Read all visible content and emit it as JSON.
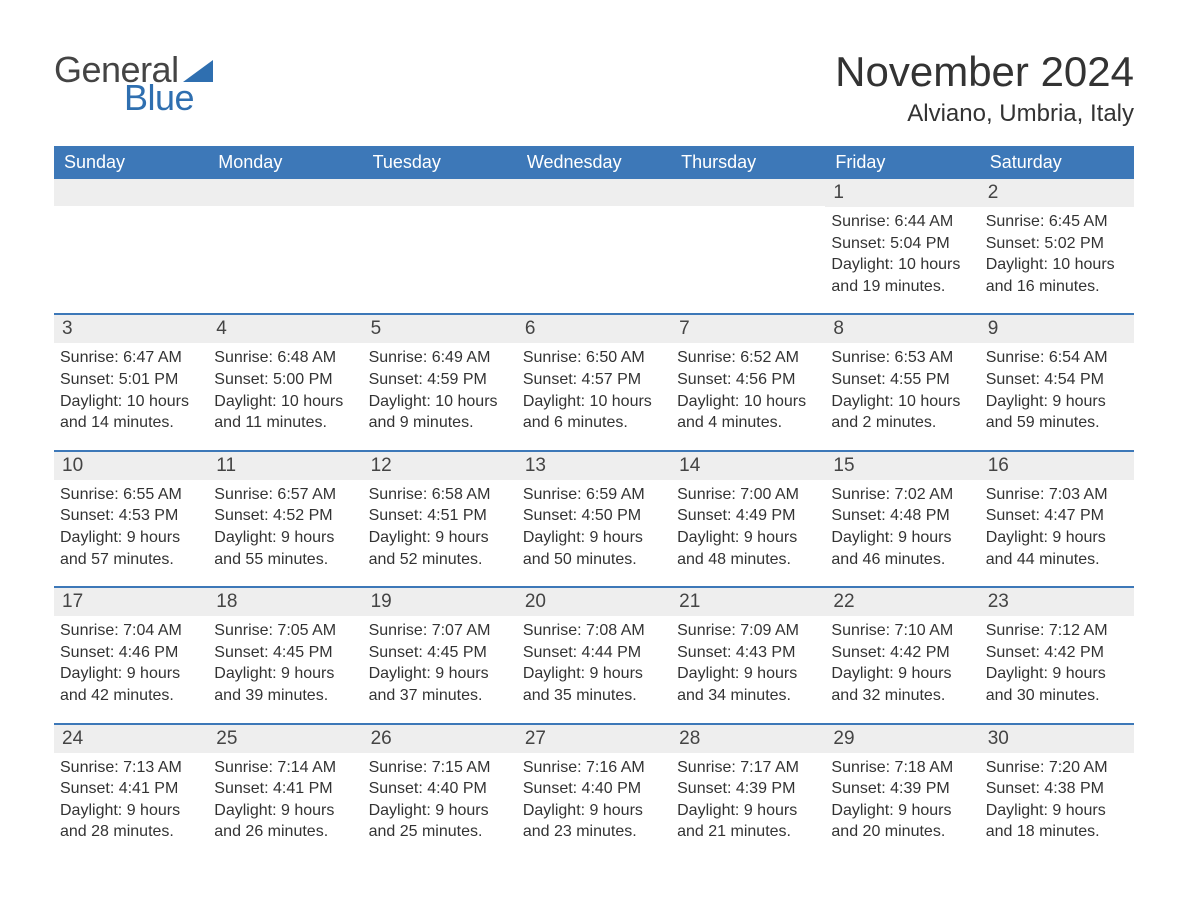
{
  "brand": {
    "word1": "General",
    "word2": "Blue",
    "word1_color": "#444444",
    "word2_color": "#2f6fb0",
    "triangle_color": "#2f6fb0",
    "fontsize": 36
  },
  "title": {
    "month": "November 2024",
    "month_fontsize": 42,
    "month_color": "#333333",
    "location": "Alviano, Umbria, Italy",
    "location_fontsize": 24,
    "location_color": "#333333"
  },
  "style": {
    "header_bg": "#3d78b8",
    "header_text": "#ffffff",
    "week_border": "#3d78b8",
    "daynum_bg": "#eeeeee",
    "daynum_color": "#444444",
    "body_text_color": "#333333",
    "body_fontsize": 16,
    "dow_fontsize": 18,
    "daynum_fontsize": 19,
    "page_bg": "#ffffff"
  },
  "days_of_week": [
    "Sunday",
    "Monday",
    "Tuesday",
    "Wednesday",
    "Thursday",
    "Friday",
    "Saturday"
  ],
  "weeks": [
    [
      {
        "empty": true
      },
      {
        "empty": true
      },
      {
        "empty": true
      },
      {
        "empty": true
      },
      {
        "empty": true
      },
      {
        "n": "1",
        "sunrise": "6:44 AM",
        "sunset": "5:04 PM",
        "dl1": "Daylight: 10 hours",
        "dl2": "and 19 minutes."
      },
      {
        "n": "2",
        "sunrise": "6:45 AM",
        "sunset": "5:02 PM",
        "dl1": "Daylight: 10 hours",
        "dl2": "and 16 minutes."
      }
    ],
    [
      {
        "n": "3",
        "sunrise": "6:47 AM",
        "sunset": "5:01 PM",
        "dl1": "Daylight: 10 hours",
        "dl2": "and 14 minutes."
      },
      {
        "n": "4",
        "sunrise": "6:48 AM",
        "sunset": "5:00 PM",
        "dl1": "Daylight: 10 hours",
        "dl2": "and 11 minutes."
      },
      {
        "n": "5",
        "sunrise": "6:49 AM",
        "sunset": "4:59 PM",
        "dl1": "Daylight: 10 hours",
        "dl2": "and 9 minutes."
      },
      {
        "n": "6",
        "sunrise": "6:50 AM",
        "sunset": "4:57 PM",
        "dl1": "Daylight: 10 hours",
        "dl2": "and 6 minutes."
      },
      {
        "n": "7",
        "sunrise": "6:52 AM",
        "sunset": "4:56 PM",
        "dl1": "Daylight: 10 hours",
        "dl2": "and 4 minutes."
      },
      {
        "n": "8",
        "sunrise": "6:53 AM",
        "sunset": "4:55 PM",
        "dl1": "Daylight: 10 hours",
        "dl2": "and 2 minutes."
      },
      {
        "n": "9",
        "sunrise": "6:54 AM",
        "sunset": "4:54 PM",
        "dl1": "Daylight: 9 hours",
        "dl2": "and 59 minutes."
      }
    ],
    [
      {
        "n": "10",
        "sunrise": "6:55 AM",
        "sunset": "4:53 PM",
        "dl1": "Daylight: 9 hours",
        "dl2": "and 57 minutes."
      },
      {
        "n": "11",
        "sunrise": "6:57 AM",
        "sunset": "4:52 PM",
        "dl1": "Daylight: 9 hours",
        "dl2": "and 55 minutes."
      },
      {
        "n": "12",
        "sunrise": "6:58 AM",
        "sunset": "4:51 PM",
        "dl1": "Daylight: 9 hours",
        "dl2": "and 52 minutes."
      },
      {
        "n": "13",
        "sunrise": "6:59 AM",
        "sunset": "4:50 PM",
        "dl1": "Daylight: 9 hours",
        "dl2": "and 50 minutes."
      },
      {
        "n": "14",
        "sunrise": "7:00 AM",
        "sunset": "4:49 PM",
        "dl1": "Daylight: 9 hours",
        "dl2": "and 48 minutes."
      },
      {
        "n": "15",
        "sunrise": "7:02 AM",
        "sunset": "4:48 PM",
        "dl1": "Daylight: 9 hours",
        "dl2": "and 46 minutes."
      },
      {
        "n": "16",
        "sunrise": "7:03 AM",
        "sunset": "4:47 PM",
        "dl1": "Daylight: 9 hours",
        "dl2": "and 44 minutes."
      }
    ],
    [
      {
        "n": "17",
        "sunrise": "7:04 AM",
        "sunset": "4:46 PM",
        "dl1": "Daylight: 9 hours",
        "dl2": "and 42 minutes."
      },
      {
        "n": "18",
        "sunrise": "7:05 AM",
        "sunset": "4:45 PM",
        "dl1": "Daylight: 9 hours",
        "dl2": "and 39 minutes."
      },
      {
        "n": "19",
        "sunrise": "7:07 AM",
        "sunset": "4:45 PM",
        "dl1": "Daylight: 9 hours",
        "dl2": "and 37 minutes."
      },
      {
        "n": "20",
        "sunrise": "7:08 AM",
        "sunset": "4:44 PM",
        "dl1": "Daylight: 9 hours",
        "dl2": "and 35 minutes."
      },
      {
        "n": "21",
        "sunrise": "7:09 AM",
        "sunset": "4:43 PM",
        "dl1": "Daylight: 9 hours",
        "dl2": "and 34 minutes."
      },
      {
        "n": "22",
        "sunrise": "7:10 AM",
        "sunset": "4:42 PM",
        "dl1": "Daylight: 9 hours",
        "dl2": "and 32 minutes."
      },
      {
        "n": "23",
        "sunrise": "7:12 AM",
        "sunset": "4:42 PM",
        "dl1": "Daylight: 9 hours",
        "dl2": "and 30 minutes."
      }
    ],
    [
      {
        "n": "24",
        "sunrise": "7:13 AM",
        "sunset": "4:41 PM",
        "dl1": "Daylight: 9 hours",
        "dl2": "and 28 minutes."
      },
      {
        "n": "25",
        "sunrise": "7:14 AM",
        "sunset": "4:41 PM",
        "dl1": "Daylight: 9 hours",
        "dl2": "and 26 minutes."
      },
      {
        "n": "26",
        "sunrise": "7:15 AM",
        "sunset": "4:40 PM",
        "dl1": "Daylight: 9 hours",
        "dl2": "and 25 minutes."
      },
      {
        "n": "27",
        "sunrise": "7:16 AM",
        "sunset": "4:40 PM",
        "dl1": "Daylight: 9 hours",
        "dl2": "and 23 minutes."
      },
      {
        "n": "28",
        "sunrise": "7:17 AM",
        "sunset": "4:39 PM",
        "dl1": "Daylight: 9 hours",
        "dl2": "and 21 minutes."
      },
      {
        "n": "29",
        "sunrise": "7:18 AM",
        "sunset": "4:39 PM",
        "dl1": "Daylight: 9 hours",
        "dl2": "and 20 minutes."
      },
      {
        "n": "30",
        "sunrise": "7:20 AM",
        "sunset": "4:38 PM",
        "dl1": "Daylight: 9 hours",
        "dl2": "and 18 minutes."
      }
    ]
  ],
  "labels": {
    "sunrise_prefix": "Sunrise: ",
    "sunset_prefix": "Sunset: "
  }
}
